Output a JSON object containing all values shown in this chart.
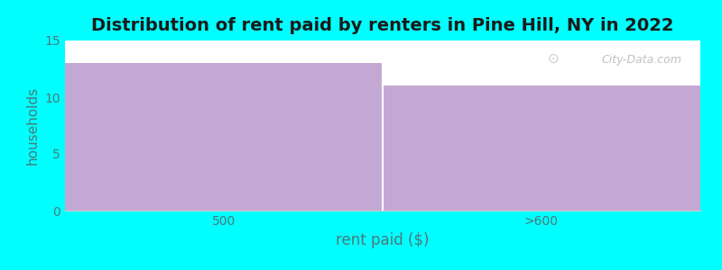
{
  "categories": [
    "500",
    ">600"
  ],
  "values": [
    13,
    11
  ],
  "bar_color": "#C4A8D4",
  "background_color": "#00FFFF",
  "plot_bg_color": "#FFFFFF",
  "title": "Distribution of rent paid by renters in Pine Hill, NY in 2022",
  "title_fontsize": 14,
  "title_fontweight": "bold",
  "title_color": "#1a1a1a",
  "xlabel": "rent paid ($)",
  "ylabel": "households",
  "xlabel_fontsize": 12,
  "ylabel_fontsize": 11,
  "xlabel_color": "#4a7a7a",
  "ylabel_color": "#4a7a7a",
  "tick_color": "#4a7a7a",
  "tick_fontsize": 10,
  "ylim": [
    0,
    15
  ],
  "yticks": [
    0,
    5,
    10,
    15
  ],
  "bar_edges": [
    0,
    1,
    2
  ],
  "watermark": "City-Data.com"
}
